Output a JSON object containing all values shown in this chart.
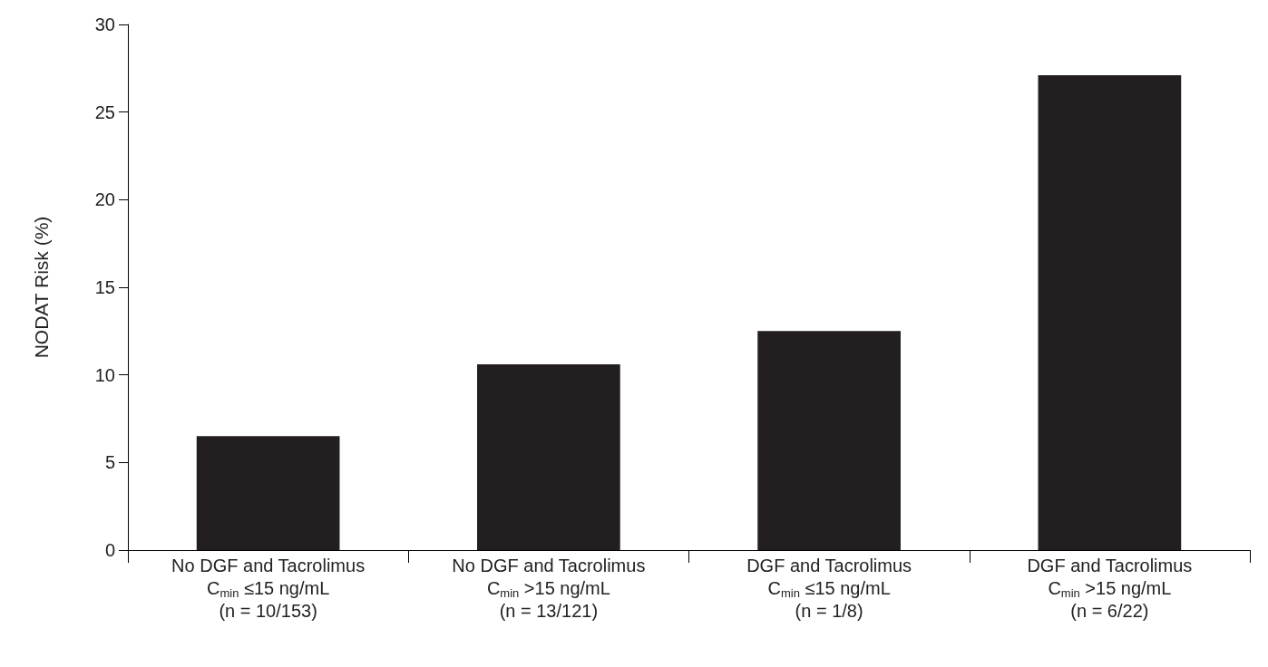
{
  "chart_data": {
    "type": "bar",
    "ylabel": "NODAT Risk (%)",
    "categories": [
      "No DGF and Tacrolimus\nC$_{min}$ ≤15 ng/mL\n(n = 10/153)",
      "No DGF and Tacrolimus\nC$_{min}$ >15 ng/mL\n(n = 13/121)",
      "DGF and Tacrolimus\nC$_{min}$ ≤15 ng/mL\n(n = 1/8)",
      "DGF and Tacrolimus\nC$_{min}$ >15 ng/mL\n(n = 6/22)"
    ],
    "values": [
      6.5,
      10.6,
      12.5,
      27.1
    ],
    "color": "#231f20",
    "ylim": [
      0,
      30
    ],
    "yticks": [
      0,
      5,
      10,
      15,
      20,
      25,
      30
    ],
    "grid": false
  }
}
